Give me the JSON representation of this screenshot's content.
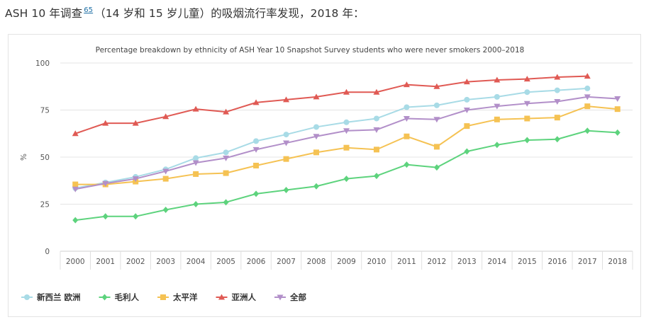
{
  "heading": {
    "text_before": "ASH 10 年调查",
    "ref": "65",
    "text_after": "（14 岁和 15 岁儿童）的吸烟流行率发现，2018 年："
  },
  "chart_data": {
    "type": "line",
    "title": "Percentage breakdown by ethnicity of ASH Year 10 Snapshot Survey students who were never smokers 2000–2018",
    "xlabel": "",
    "ylabel": "%",
    "ylim": [
      0,
      100
    ],
    "yticks": [
      0,
      25,
      50,
      75,
      100
    ],
    "categories": [
      "2000",
      "2001",
      "2002",
      "2003",
      "2004",
      "2005",
      "2006",
      "2007",
      "2008",
      "2009",
      "2010",
      "2011",
      "2012",
      "2013",
      "2014",
      "2015",
      "2016",
      "2017",
      "2018"
    ],
    "legend_position": "bottom-left",
    "series": [
      {
        "name": "新西兰 欧洲",
        "color": "#a8dbe6",
        "marker": "circle",
        "values": [
          33.5,
          36.5,
          39.5,
          43.5,
          49.5,
          52.5,
          58.5,
          62,
          66,
          68.5,
          70.5,
          76.5,
          77.5,
          80.5,
          82,
          84.5,
          85.5,
          86.5,
          null
        ]
      },
      {
        "name": "毛利人",
        "color": "#5dd37d",
        "marker": "diamond",
        "values": [
          16.5,
          18.5,
          18.5,
          22,
          25,
          26,
          30.5,
          32.5,
          34.5,
          38.5,
          40,
          46,
          44.5,
          53,
          56.5,
          59,
          59.5,
          64,
          63
        ]
      },
      {
        "name": "太平洋",
        "color": "#f5c253",
        "marker": "square",
        "values": [
          35.5,
          35.5,
          37,
          38.5,
          41,
          41.5,
          45.5,
          49,
          52.5,
          55,
          54,
          61,
          55.5,
          66.5,
          70,
          70.5,
          71,
          77,
          75.5
        ]
      },
      {
        "name": "亚洲人",
        "color": "#e05a54",
        "marker": "triangle-up",
        "values": [
          62.5,
          68,
          68,
          71.5,
          75.5,
          74,
          79,
          80.5,
          82,
          84.5,
          84.5,
          88.5,
          87.5,
          90,
          91,
          91.5,
          92.5,
          93,
          null
        ]
      },
      {
        "name": "全部",
        "color": "#b28fc9",
        "marker": "triangle-down",
        "values": [
          33,
          36,
          38.5,
          42.5,
          47,
          49.5,
          54,
          57.5,
          61,
          64,
          64.5,
          70.5,
          70,
          75,
          77,
          78.5,
          79.5,
          82,
          81
        ]
      }
    ]
  }
}
